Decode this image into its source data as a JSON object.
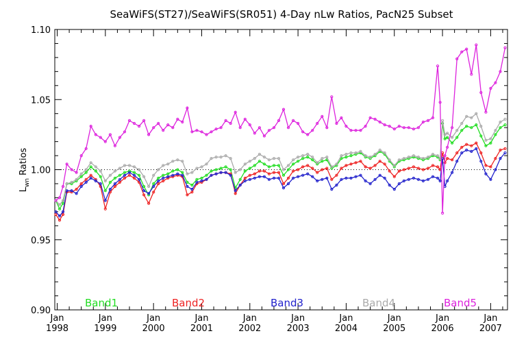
{
  "chart_data": {
    "type": "line",
    "title": "SeaWiFS(ST27)/SeaWiFS(SR051) 4-Day nLw Ratios, PacN25 Subset",
    "ylabel_main": "L",
    "ylabel_sub": "wn",
    "ylabel_rest": " Ratios",
    "ylim": [
      0.9,
      1.1
    ],
    "yticks": [
      {
        "value": 0.9,
        "label": "0.90"
      },
      {
        "value": 0.95,
        "label": "0.95"
      },
      {
        "value": 1.0,
        "label": "1.00"
      },
      {
        "value": 1.05,
        "label": "1.05"
      },
      {
        "value": 1.1,
        "label": "1.10"
      }
    ],
    "xlim": [
      1997.95,
      2007.35
    ],
    "xticks": [
      {
        "value": 1998,
        "month": "Jan",
        "year": "1998"
      },
      {
        "value": 1999,
        "month": "Jan",
        "year": "1999"
      },
      {
        "value": 2000,
        "month": "Jan",
        "year": "2000"
      },
      {
        "value": 2001,
        "month": "Jan",
        "year": "2001"
      },
      {
        "value": 2002,
        "month": "Jan",
        "year": "2002"
      },
      {
        "value": 2003,
        "month": "Jan",
        "year": "2003"
      },
      {
        "value": 2004,
        "month": "Jan",
        "year": "2004"
      },
      {
        "value": 2005,
        "month": "Jan",
        "year": "2005"
      },
      {
        "value": 2006,
        "month": "Jan",
        "year": "2006"
      },
      {
        "value": 2007,
        "month": "Jan",
        "year": "2007"
      }
    ],
    "reference_line": 1.0,
    "series": [
      {
        "name": "Band1",
        "color": "#22dd22",
        "x": [
          1997.97,
          1998.05,
          1998.12,
          1998.2,
          1998.3,
          1998.4,
          1998.5,
          1998.6,
          1998.7,
          1998.8,
          1998.9,
          1999.0,
          1999.1,
          1999.2,
          1999.3,
          1999.4,
          1999.5,
          1999.6,
          1999.7,
          1999.8,
          1999.9,
          2000.0,
          2000.1,
          2000.2,
          2000.3,
          2000.4,
          2000.5,
          2000.6,
          2000.7,
          2000.8,
          2000.9,
          2001.0,
          2001.1,
          2001.2,
          2001.3,
          2001.4,
          2001.5,
          2001.6,
          2001.7,
          2001.8,
          2001.9,
          2002.0,
          2002.1,
          2002.2,
          2002.3,
          2002.4,
          2002.5,
          2002.6,
          2002.7,
          2002.8,
          2002.9,
          2003.0,
          2003.1,
          2003.2,
          2003.3,
          2003.4,
          2003.5,
          2003.6,
          2003.7,
          2003.8,
          2003.9,
          2004.0,
          2004.1,
          2004.2,
          2004.3,
          2004.4,
          2004.5,
          2004.6,
          2004.7,
          2004.8,
          2004.9,
          2005.0,
          2005.1,
          2005.2,
          2005.3,
          2005.4,
          2005.5,
          2005.6,
          2005.7,
          2005.8,
          2005.9,
          2005.95,
          2006.0,
          2006.05,
          2006.1,
          2006.2,
          2006.3,
          2006.4,
          2006.5,
          2006.6,
          2006.7,
          2006.8,
          2006.9,
          2007.0,
          2007.1,
          2007.2,
          2007.3
        ],
        "values": [
          0.978,
          0.972,
          0.976,
          0.99,
          0.99,
          0.992,
          0.995,
          0.998,
          1.002,
          0.999,
          0.995,
          0.985,
          0.991,
          0.994,
          0.996,
          0.998,
          0.999,
          0.998,
          0.996,
          0.988,
          0.982,
          0.99,
          0.994,
          0.996,
          0.997,
          0.999,
          1.0,
          0.998,
          0.991,
          0.989,
          0.993,
          0.994,
          0.996,
          0.999,
          1.0,
          1.001,
          1.002,
          1.0,
          0.987,
          0.993,
          0.999,
          1.001,
          1.003,
          1.006,
          1.004,
          1.002,
          1.003,
          1.003,
          0.996,
          1.0,
          1.004,
          1.006,
          1.008,
          1.009,
          1.007,
          1.004,
          1.006,
          1.007,
          1.001,
          1.003,
          1.008,
          1.009,
          1.01,
          1.011,
          1.012,
          1.009,
          1.008,
          1.01,
          1.013,
          1.011,
          1.006,
          1.002,
          1.006,
          1.007,
          1.008,
          1.009,
          1.008,
          1.007,
          1.008,
          1.01,
          1.009,
          1.007,
          1.033,
          1.022,
          1.023,
          1.019,
          1.023,
          1.028,
          1.031,
          1.03,
          1.032,
          1.024,
          1.017,
          1.019,
          1.025,
          1.03,
          1.032
        ]
      },
      {
        "name": "Band2",
        "color": "#ee2222",
        "x": [
          1997.97,
          1998.05,
          1998.12,
          1998.2,
          1998.3,
          1998.4,
          1998.5,
          1998.6,
          1998.7,
          1998.8,
          1998.9,
          1999.0,
          1999.1,
          1999.2,
          1999.3,
          1999.4,
          1999.5,
          1999.6,
          1999.7,
          1999.8,
          1999.9,
          2000.0,
          2000.1,
          2000.2,
          2000.3,
          2000.4,
          2000.5,
          2000.6,
          2000.7,
          2000.8,
          2000.9,
          2001.0,
          2001.1,
          2001.2,
          2001.3,
          2001.4,
          2001.5,
          2001.6,
          2001.7,
          2001.8,
          2001.9,
          2002.0,
          2002.1,
          2002.2,
          2002.3,
          2002.4,
          2002.5,
          2002.6,
          2002.7,
          2002.8,
          2002.9,
          2003.0,
          2003.1,
          2003.2,
          2003.3,
          2003.4,
          2003.5,
          2003.6,
          2003.7,
          2003.8,
          2003.9,
          2004.0,
          2004.1,
          2004.2,
          2004.3,
          2004.4,
          2004.5,
          2004.6,
          2004.7,
          2004.8,
          2004.9,
          2005.0,
          2005.1,
          2005.2,
          2005.3,
          2005.4,
          2005.5,
          2005.6,
          2005.7,
          2005.8,
          2005.9,
          2005.95,
          2006.0,
          2006.05,
          2006.1,
          2006.2,
          2006.3,
          2006.4,
          2006.5,
          2006.6,
          2006.7,
          2006.8,
          2006.9,
          2007.0,
          2007.1,
          2007.2,
          2007.3
        ],
        "values": [
          0.968,
          0.964,
          0.968,
          0.984,
          0.984,
          0.986,
          0.99,
          0.993,
          0.996,
          0.993,
          0.988,
          0.972,
          0.984,
          0.988,
          0.991,
          0.994,
          0.996,
          0.994,
          0.991,
          0.982,
          0.976,
          0.984,
          0.99,
          0.992,
          0.994,
          0.995,
          0.996,
          0.995,
          0.982,
          0.984,
          0.99,
          0.991,
          0.993,
          0.996,
          0.997,
          0.998,
          0.998,
          0.997,
          0.983,
          0.989,
          0.994,
          0.996,
          0.997,
          0.999,
          0.999,
          0.997,
          0.998,
          0.998,
          0.99,
          0.994,
          0.999,
          1.0,
          1.002,
          1.003,
          1.001,
          0.998,
          1.0,
          1.001,
          0.993,
          0.996,
          1.001,
          1.003,
          1.004,
          1.005,
          1.006,
          1.002,
          1.001,
          1.003,
          1.006,
          1.004,
          0.999,
          0.995,
          0.999,
          1.0,
          1.001,
          1.002,
          1.001,
          1.0,
          1.001,
          1.003,
          1.002,
          1.0,
          1.012,
          1.005,
          1.008,
          1.007,
          1.012,
          1.016,
          1.018,
          1.017,
          1.019,
          1.012,
          1.003,
          1.002,
          1.008,
          1.014,
          1.015
        ]
      },
      {
        "name": "Band3",
        "color": "#2222cc",
        "x": [
          1997.97,
          1998.05,
          1998.12,
          1998.2,
          1998.3,
          1998.4,
          1998.5,
          1998.6,
          1998.7,
          1998.8,
          1998.9,
          1999.0,
          1999.1,
          1999.2,
          1999.3,
          1999.4,
          1999.5,
          1999.6,
          1999.7,
          1999.8,
          1999.9,
          2000.0,
          2000.1,
          2000.2,
          2000.3,
          2000.4,
          2000.5,
          2000.6,
          2000.7,
          2000.8,
          2000.9,
          2001.0,
          2001.1,
          2001.2,
          2001.3,
          2001.4,
          2001.5,
          2001.6,
          2001.7,
          2001.8,
          2001.9,
          2002.0,
          2002.1,
          2002.2,
          2002.3,
          2002.4,
          2002.5,
          2002.6,
          2002.7,
          2002.8,
          2002.9,
          2003.0,
          2003.1,
          2003.2,
          2003.3,
          2003.4,
          2003.5,
          2003.6,
          2003.7,
          2003.8,
          2003.9,
          2004.0,
          2004.1,
          2004.2,
          2004.3,
          2004.4,
          2004.5,
          2004.6,
          2004.7,
          2004.8,
          2004.9,
          2005.0,
          2005.1,
          2005.2,
          2005.3,
          2005.4,
          2005.5,
          2005.6,
          2005.7,
          2005.8,
          2005.9,
          2005.95,
          2006.0,
          2006.05,
          2006.1,
          2006.2,
          2006.3,
          2006.4,
          2006.5,
          2006.6,
          2006.7,
          2006.8,
          2006.9,
          2007.0,
          2007.1,
          2007.2,
          2007.3
        ],
        "values": [
          0.97,
          0.967,
          0.97,
          0.985,
          0.985,
          0.983,
          0.988,
          0.991,
          0.994,
          0.992,
          0.99,
          0.978,
          0.986,
          0.99,
          0.993,
          0.996,
          0.998,
          0.996,
          0.993,
          0.985,
          0.983,
          0.988,
          0.992,
          0.994,
          0.995,
          0.996,
          0.997,
          0.996,
          0.988,
          0.986,
          0.991,
          0.992,
          0.993,
          0.996,
          0.997,
          0.998,
          0.998,
          0.996,
          0.985,
          0.989,
          0.992,
          0.993,
          0.994,
          0.995,
          0.995,
          0.993,
          0.994,
          0.994,
          0.987,
          0.99,
          0.994,
          0.995,
          0.996,
          0.997,
          0.995,
          0.992,
          0.993,
          0.994,
          0.986,
          0.989,
          0.993,
          0.994,
          0.994,
          0.995,
          0.996,
          0.992,
          0.99,
          0.993,
          0.996,
          0.994,
          0.989,
          0.986,
          0.99,
          0.992,
          0.993,
          0.994,
          0.993,
          0.992,
          0.993,
          0.995,
          0.994,
          0.992,
          1.008,
          0.988,
          0.992,
          0.998,
          1.006,
          1.012,
          1.014,
          1.013,
          1.015,
          1.006,
          0.997,
          0.993,
          1.0,
          1.008,
          1.012
        ]
      },
      {
        "name": "Band4",
        "color": "#aaaaaa",
        "x": [
          1997.97,
          1998.05,
          1998.12,
          1998.2,
          1998.3,
          1998.4,
          1998.5,
          1998.6,
          1998.7,
          1998.8,
          1998.9,
          1999.0,
          1999.1,
          1999.2,
          1999.3,
          1999.4,
          1999.5,
          1999.6,
          1999.7,
          1999.8,
          1999.9,
          2000.0,
          2000.1,
          2000.2,
          2000.3,
          2000.4,
          2000.5,
          2000.6,
          2000.7,
          2000.8,
          2000.9,
          2001.0,
          2001.1,
          2001.2,
          2001.3,
          2001.4,
          2001.5,
          2001.6,
          2001.7,
          2001.8,
          2001.9,
          2002.0,
          2002.1,
          2002.2,
          2002.3,
          2002.4,
          2002.5,
          2002.6,
          2002.7,
          2002.8,
          2002.9,
          2003.0,
          2003.1,
          2003.2,
          2003.3,
          2003.4,
          2003.5,
          2003.6,
          2003.7,
          2003.8,
          2003.9,
          2004.0,
          2004.1,
          2004.2,
          2004.3,
          2004.4,
          2004.5,
          2004.6,
          2004.7,
          2004.8,
          2004.9,
          2005.0,
          2005.1,
          2005.2,
          2005.3,
          2005.4,
          2005.5,
          2005.6,
          2005.7,
          2005.8,
          2005.9,
          2005.95,
          2006.0,
          2006.05,
          2006.1,
          2006.2,
          2006.3,
          2006.4,
          2006.5,
          2006.6,
          2006.7,
          2006.8,
          2006.9,
          2007.0,
          2007.1,
          2007.2,
          2007.3
        ],
        "values": [
          0.978,
          0.975,
          0.978,
          0.99,
          0.991,
          0.993,
          0.997,
          1.0,
          1.005,
          1.002,
          0.999,
          0.992,
          0.996,
          0.999,
          1.001,
          1.003,
          1.003,
          1.002,
          1.0,
          0.995,
          0.988,
          0.996,
          1.0,
          1.003,
          1.004,
          1.006,
          1.007,
          1.006,
          0.997,
          0.998,
          1.001,
          1.002,
          1.004,
          1.008,
          1.009,
          1.009,
          1.01,
          1.008,
          0.998,
          1.0,
          1.004,
          1.006,
          1.008,
          1.011,
          1.009,
          1.007,
          1.008,
          1.008,
          1.0,
          1.003,
          1.007,
          1.009,
          1.01,
          1.011,
          1.009,
          1.005,
          1.008,
          1.009,
          1.002,
          1.004,
          1.01,
          1.011,
          1.012,
          1.012,
          1.013,
          1.01,
          1.009,
          1.011,
          1.014,
          1.012,
          1.007,
          1.003,
          1.007,
          1.008,
          1.009,
          1.01,
          1.009,
          1.008,
          1.009,
          1.011,
          1.01,
          1.008,
          1.035,
          1.025,
          1.026,
          1.023,
          1.028,
          1.033,
          1.038,
          1.037,
          1.04,
          1.031,
          1.021,
          1.022,
          1.028,
          1.034,
          1.036
        ]
      },
      {
        "name": "Band5",
        "color": "#dd22dd",
        "x": [
          1997.97,
          1998.05,
          1998.12,
          1998.2,
          1998.3,
          1998.4,
          1998.5,
          1998.6,
          1998.7,
          1998.8,
          1998.9,
          1999.0,
          1999.1,
          1999.2,
          1999.3,
          1999.4,
          1999.5,
          1999.6,
          1999.7,
          1999.8,
          1999.9,
          2000.0,
          2000.1,
          2000.2,
          2000.3,
          2000.4,
          2000.5,
          2000.6,
          2000.7,
          2000.8,
          2000.9,
          2001.0,
          2001.1,
          2001.2,
          2001.3,
          2001.4,
          2001.5,
          2001.6,
          2001.7,
          2001.8,
          2001.9,
          2002.0,
          2002.1,
          2002.2,
          2002.3,
          2002.4,
          2002.5,
          2002.6,
          2002.7,
          2002.8,
          2002.9,
          2003.0,
          2003.1,
          2003.2,
          2003.3,
          2003.4,
          2003.5,
          2003.6,
          2003.7,
          2003.8,
          2003.9,
          2004.0,
          2004.1,
          2004.2,
          2004.3,
          2004.4,
          2004.5,
          2004.6,
          2004.7,
          2004.8,
          2004.9,
          2005.0,
          2005.1,
          2005.2,
          2005.3,
          2005.4,
          2005.5,
          2005.6,
          2005.7,
          2005.8,
          2005.9,
          2005.95,
          2006.0,
          2006.05,
          2006.1,
          2006.2,
          2006.3,
          2006.4,
          2006.5,
          2006.6,
          2006.7,
          2006.8,
          2006.9,
          2007.0,
          2007.1,
          2007.2,
          2007.3
        ],
        "values": [
          0.978,
          0.98,
          0.988,
          1.004,
          1.0,
          0.998,
          1.01,
          1.015,
          1.031,
          1.025,
          1.023,
          1.02,
          1.025,
          1.017,
          1.023,
          1.027,
          1.035,
          1.033,
          1.031,
          1.035,
          1.025,
          1.03,
          1.033,
          1.028,
          1.032,
          1.03,
          1.036,
          1.034,
          1.044,
          1.027,
          1.028,
          1.027,
          1.025,
          1.027,
          1.029,
          1.03,
          1.035,
          1.033,
          1.041,
          1.03,
          1.036,
          1.032,
          1.026,
          1.03,
          1.024,
          1.028,
          1.03,
          1.035,
          1.043,
          1.03,
          1.035,
          1.033,
          1.027,
          1.025,
          1.028,
          1.033,
          1.038,
          1.03,
          1.052,
          1.033,
          1.037,
          1.031,
          1.028,
          1.028,
          1.028,
          1.031,
          1.037,
          1.036,
          1.034,
          1.032,
          1.031,
          1.029,
          1.031,
          1.03,
          1.03,
          1.029,
          1.03,
          1.034,
          1.035,
          1.037,
          1.074,
          1.048,
          0.969,
          1.01,
          1.016,
          1.03,
          1.079,
          1.084,
          1.086,
          1.068,
          1.089,
          1.055,
          1.041,
          1.058,
          1.062,
          1.07,
          1.087
        ]
      }
    ],
    "legend": {
      "placement": "bottom-inside",
      "entries": [
        "Band1",
        "Band2",
        "Band3",
        "Band4",
        "Band5"
      ]
    }
  }
}
